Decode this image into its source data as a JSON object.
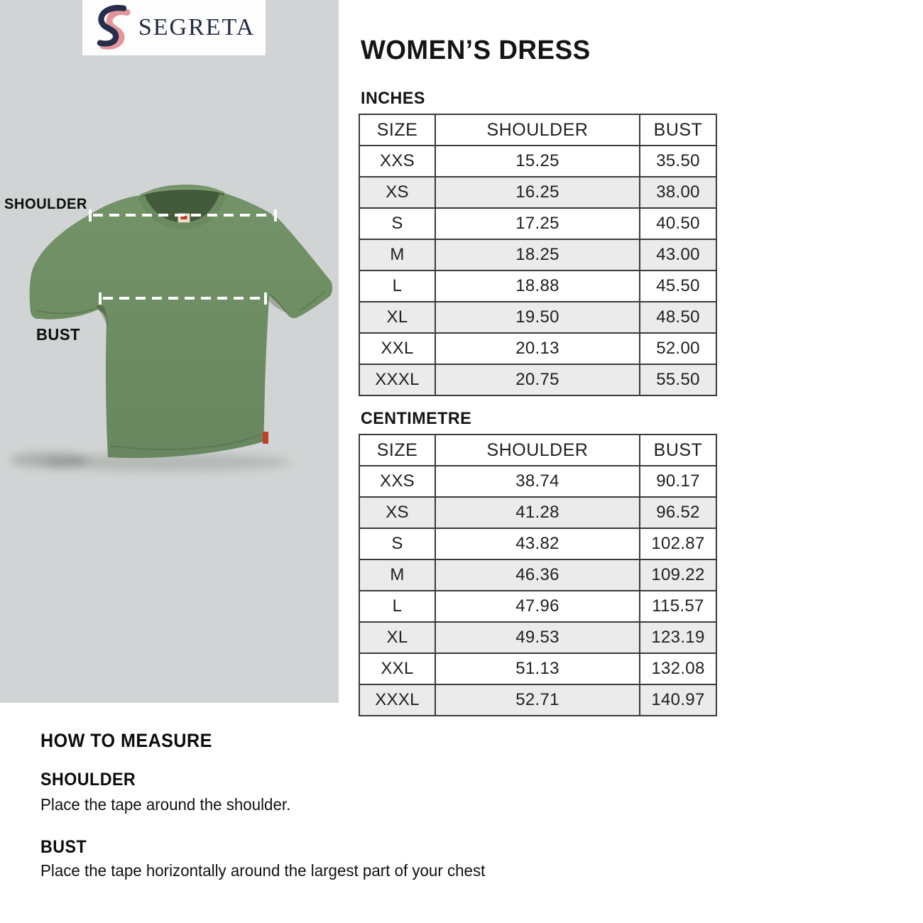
{
  "brand": {
    "name": "SEGRETA"
  },
  "header": {
    "title": "WOMEN’S DRESS"
  },
  "diagram": {
    "shoulder_label": "SHOULDER",
    "bust_label": "BUST"
  },
  "tables": [
    {
      "unit_label": "INCHES",
      "columns": [
        "SIZE",
        "SHOULDER",
        "BUST"
      ],
      "rows": [
        [
          "XXS",
          "15.25",
          "35.50"
        ],
        [
          "XS",
          "16.25",
          "38.00"
        ],
        [
          "S",
          "17.25",
          "40.50"
        ],
        [
          "M",
          "18.25",
          "43.00"
        ],
        [
          "L",
          "18.88",
          "45.50"
        ],
        [
          "XL",
          "19.50",
          "48.50"
        ],
        [
          "XXL",
          "20.13",
          "52.00"
        ],
        [
          "XXXL",
          "20.75",
          "55.50"
        ]
      ]
    },
    {
      "unit_label": "CENTIMETRE",
      "columns": [
        "SIZE",
        "SHOULDER",
        "BUST"
      ],
      "rows": [
        [
          "XXS",
          "38.74",
          "90.17"
        ],
        [
          "XS",
          "41.28",
          "96.52"
        ],
        [
          "S",
          "43.82",
          "102.87"
        ],
        [
          "M",
          "46.36",
          "109.22"
        ],
        [
          "L",
          "47.96",
          "115.57"
        ],
        [
          "XL",
          "49.53",
          "123.19"
        ],
        [
          "XXL",
          "51.13",
          "132.08"
        ],
        [
          "XXXL",
          "52.71",
          "140.97"
        ]
      ]
    }
  ],
  "how_to_measure": {
    "title": "HOW TO MEASURE",
    "sections": [
      {
        "heading": "SHOULDER",
        "text": "Place the tape around the shoulder."
      },
      {
        "heading": "BUST",
        "text": "Place the tape horizontally around the largest part of your chest"
      }
    ]
  },
  "colors": {
    "panel_bg": "#d1d4d4",
    "shirt_green": "#6e8d62",
    "logo_navy": "#252e4a",
    "logo_pink": "#e2959a",
    "row_shade": "#ebebeb",
    "table_border": "#3b3b3b",
    "hem_tag_red": "#bf3f2d"
  }
}
